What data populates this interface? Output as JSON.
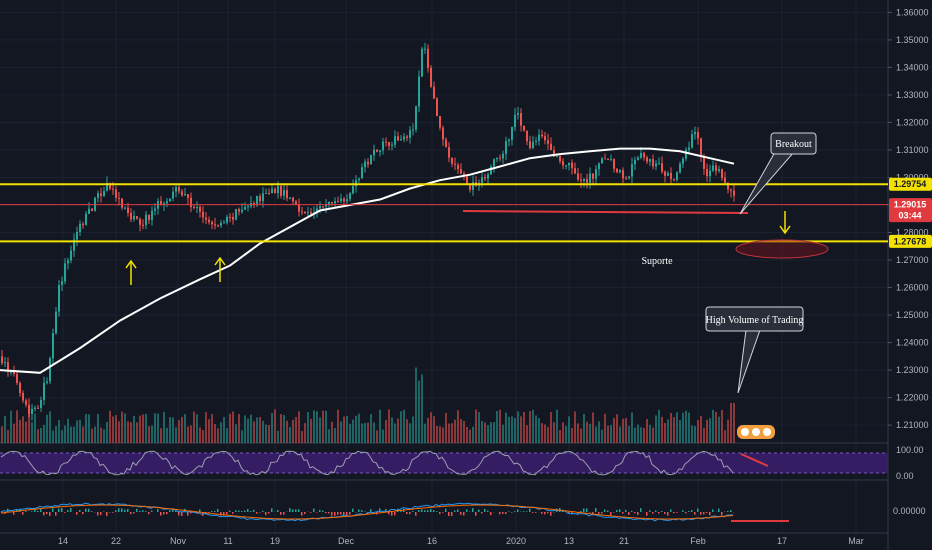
{
  "chart_data": {
    "type": "candlestick",
    "symbol_pair": "GBP/USD",
    "price_axis": {
      "ylim": [
        1.2035,
        1.3645
      ],
      "ticks": [
        "1.36000",
        "1.35000",
        "1.34000",
        "1.33000",
        "1.32000",
        "1.31000",
        "1.30000",
        "1.29000",
        "1.28000",
        "1.27000",
        "1.26000",
        "1.25000",
        "1.24000",
        "1.23000",
        "1.22000",
        "1.21000"
      ]
    },
    "time_axis": {
      "labels": [
        "14",
        "22",
        "Nov",
        "11",
        "19",
        "Dec",
        "16",
        "2020",
        "13",
        "21",
        "Feb",
        "17",
        "Mar"
      ]
    },
    "levels": {
      "resistance": {
        "label": "1.29754",
        "value": 1.29754,
        "color": "#f5e100"
      },
      "current": {
        "label": "1.29015",
        "value": 1.29015,
        "color": "#e03a3e"
      },
      "countdown": "03:44",
      "support": {
        "label": "1.27678",
        "value": 1.27678,
        "color": "#f5e100"
      }
    },
    "annotations": {
      "breakout": "Breakout",
      "suporte": "Suporte",
      "high_volume": "High Volume of Trading"
    },
    "stoch_axis": [
      "100.00",
      "0.00"
    ],
    "macd_axis": [
      "0.00000"
    ],
    "colors": {
      "background": "#131722",
      "up": "#26a69a",
      "down": "#ef5350",
      "moving_average": "#ffffff",
      "stoch_band": "#3b1f6e",
      "stoch_line": "#9a9fb0"
    },
    "price_path": [
      [
        0,
        1.235
      ],
      [
        8,
        1.229
      ],
      [
        16,
        1.226
      ],
      [
        28,
        1.215
      ],
      [
        38,
        1.218
      ],
      [
        48,
        1.23
      ],
      [
        58,
        1.26
      ],
      [
        68,
        1.272
      ],
      [
        78,
        1.282
      ],
      [
        88,
        1.288
      ],
      [
        98,
        1.293
      ],
      [
        106,
        1.298
      ],
      [
        116,
        1.292
      ],
      [
        126,
        1.287
      ],
      [
        136,
        1.2835
      ],
      [
        146,
        1.285
      ],
      [
        156,
        1.29
      ],
      [
        166,
        1.293
      ],
      [
        176,
        1.296
      ],
      [
        186,
        1.292
      ],
      [
        196,
        1.288
      ],
      [
        206,
        1.284
      ],
      [
        216,
        1.282
      ],
      [
        226,
        1.2845
      ],
      [
        236,
        1.287
      ],
      [
        246,
        1.289
      ],
      [
        256,
        1.292
      ],
      [
        266,
        1.295
      ],
      [
        276,
        1.296
      ],
      [
        286,
        1.293
      ],
      [
        296,
        1.29
      ],
      [
        306,
        1.2865
      ],
      [
        316,
        1.288
      ],
      [
        326,
        1.29
      ],
      [
        336,
        1.292
      ],
      [
        346,
        1.2935
      ],
      [
        356,
        1.299
      ],
      [
        366,
        1.306
      ],
      [
        376,
        1.311
      ],
      [
        386,
        1.313
      ],
      [
        396,
        1.314
      ],
      [
        406,
        1.316
      ],
      [
        414,
        1.32
      ],
      [
        418,
        1.338
      ],
      [
        422,
        1.349
      ],
      [
        428,
        1.338
      ],
      [
        434,
        1.326
      ],
      [
        440,
        1.316
      ],
      [
        446,
        1.308
      ],
      [
        454,
        1.303
      ],
      [
        462,
        1.3
      ],
      [
        470,
        1.296
      ],
      [
        478,
        1.299
      ],
      [
        486,
        1.302
      ],
      [
        494,
        1.306
      ],
      [
        502,
        1.31
      ],
      [
        510,
        1.315
      ],
      [
        516,
        1.325
      ],
      [
        522,
        1.318
      ],
      [
        528,
        1.31
      ],
      [
        536,
        1.315
      ],
      [
        544,
        1.313
      ],
      [
        552,
        1.308
      ],
      [
        560,
        1.306
      ],
      [
        568,
        1.304
      ],
      [
        576,
        1.3
      ],
      [
        584,
        1.299
      ],
      [
        592,
        1.301
      ],
      [
        600,
        1.305
      ],
      [
        608,
        1.307
      ],
      [
        616,
        1.303
      ],
      [
        624,
        1.3
      ],
      [
        632,
        1.304
      ],
      [
        640,
        1.309
      ],
      [
        648,
        1.306
      ],
      [
        656,
        1.304
      ],
      [
        664,
        1.302
      ],
      [
        672,
        1.299
      ],
      [
        680,
        1.304
      ],
      [
        688,
        1.311
      ],
      [
        692,
        1.318
      ],
      [
        698,
        1.312
      ],
      [
        704,
        1.3
      ],
      [
        710,
        1.302
      ],
      [
        716,
        1.304
      ],
      [
        722,
        1.299
      ],
      [
        728,
        1.295
      ],
      [
        734,
        1.292
      ]
    ],
    "moving_average": [
      [
        0,
        1.23
      ],
      [
        40,
        1.229
      ],
      [
        80,
        1.238
      ],
      [
        120,
        1.248
      ],
      [
        160,
        1.256
      ],
      [
        200,
        1.263
      ],
      [
        230,
        1.268
      ],
      [
        260,
        1.276
      ],
      [
        290,
        1.282
      ],
      [
        320,
        1.288
      ],
      [
        350,
        1.29
      ],
      [
        380,
        1.292
      ],
      [
        410,
        1.296
      ],
      [
        440,
        1.299
      ],
      [
        470,
        1.301
      ],
      [
        500,
        1.304
      ],
      [
        530,
        1.307
      ],
      [
        560,
        1.3085
      ],
      [
        590,
        1.3095
      ],
      [
        620,
        1.3105
      ],
      [
        650,
        1.3105
      ],
      [
        680,
        1.3095
      ],
      [
        710,
        1.307
      ],
      [
        734,
        1.305
      ]
    ]
  }
}
